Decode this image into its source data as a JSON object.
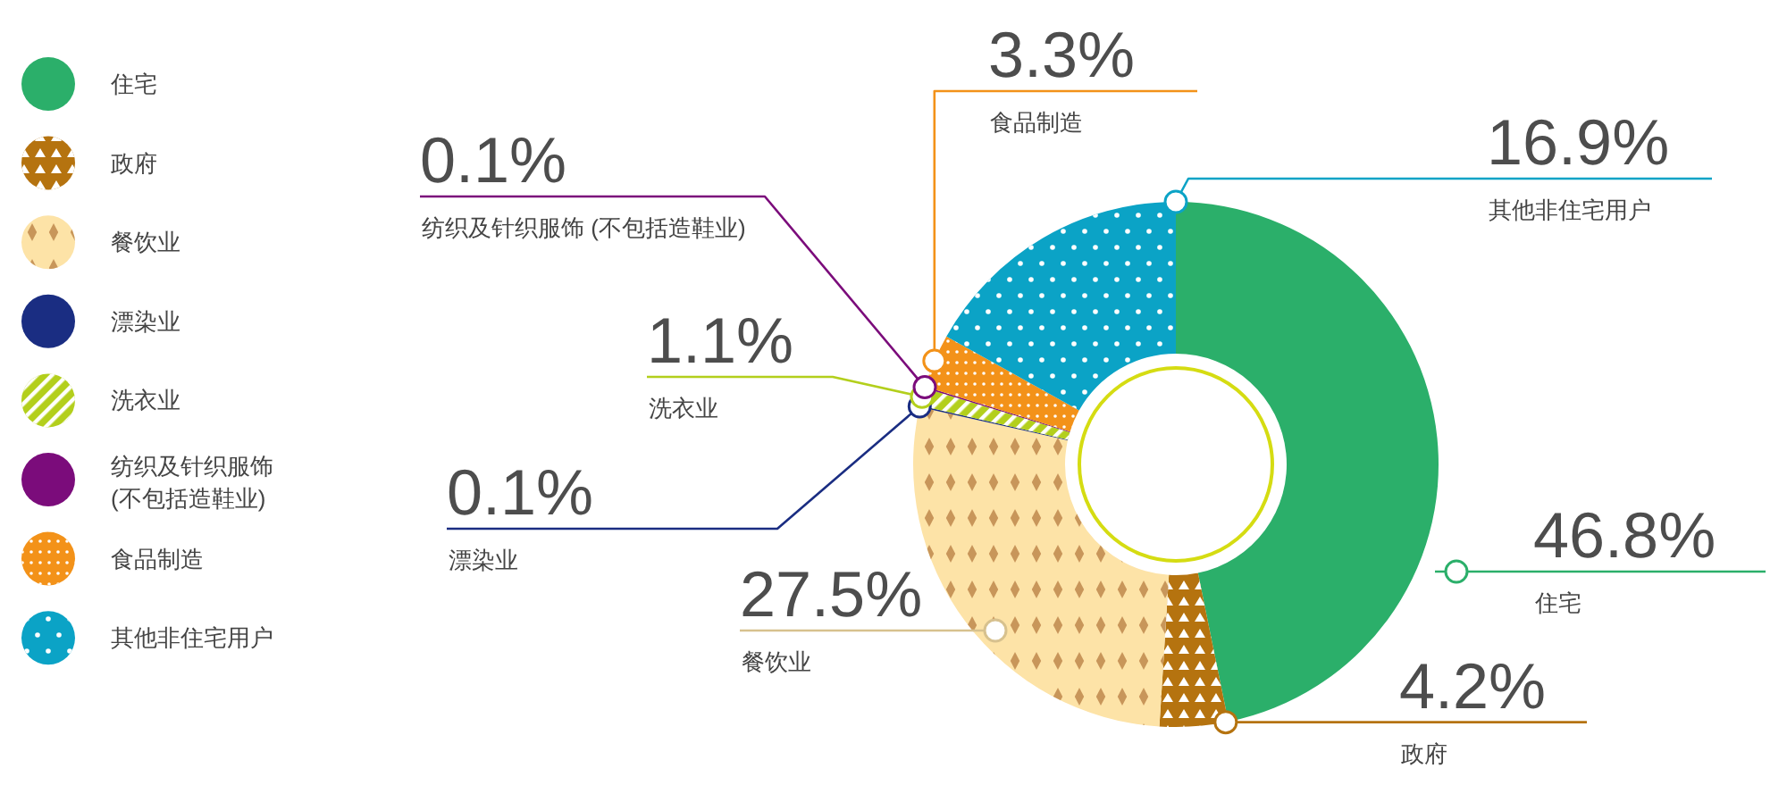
{
  "chart_data": {
    "type": "donut",
    "categories": [
      "住宅",
      "政府",
      "餐饮业",
      "漂染业",
      "洗衣业",
      "纺织及针织服饰 (不包括造鞋业)",
      "食品制造",
      "其他非住宅用户"
    ],
    "values": [
      46.8,
      4.2,
      27.5,
      0.1,
      1.1,
      0.1,
      3.3,
      16.9
    ],
    "colors": [
      "#2baf6a",
      "#b5730f",
      "#fde3a7",
      "#1a2d82",
      "#b3cf1c",
      "#7b0c7b",
      "#f39219",
      "#0ba3c6"
    ],
    "value_labels": [
      "46.8%",
      "4.2%",
      "27.5%",
      "0.1%",
      "1.1%",
      "0.1%",
      "3.3%",
      "16.9%"
    ],
    "legend": "left"
  }
}
